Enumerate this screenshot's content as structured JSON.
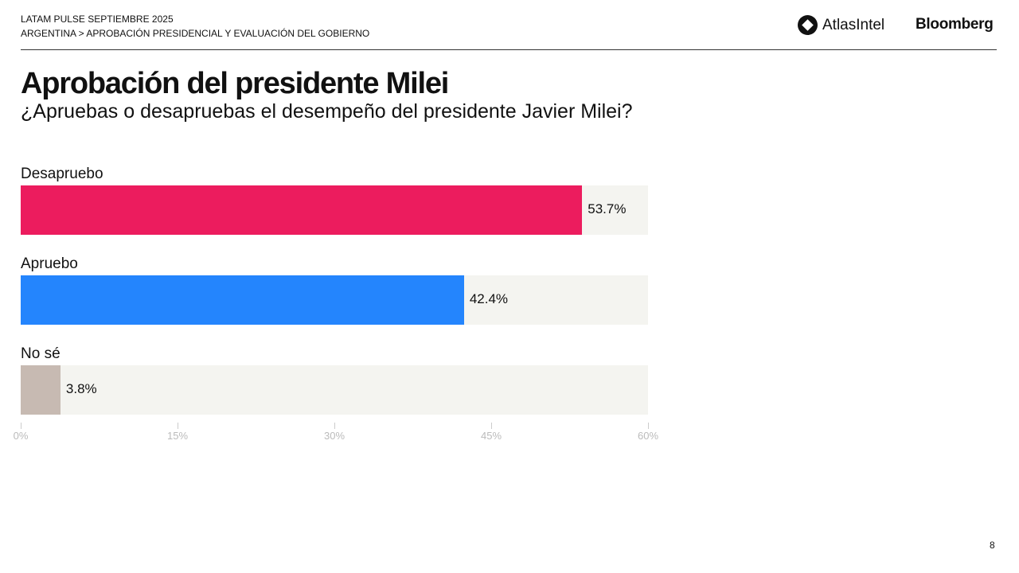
{
  "header": {
    "line1": "LATAM PULSE SEPTIEMBRE 2025",
    "line2": "ARGENTINA > APROBACIÓN PRESIDENCIAL Y EVALUACIÓN DEL GOBIERNO"
  },
  "logos": {
    "atlas": "AtlasIntel",
    "bloomberg": "Bloomberg"
  },
  "page_number": "8",
  "chart_data": {
    "type": "bar",
    "orientation": "horizontal",
    "title": "Aprobación del presidente Milei",
    "subtitle": "¿Apruebas o desapruebas el desempeño del presidente Javier Milei?",
    "categories": [
      "Desapruebo",
      "Apruebo",
      "No sé"
    ],
    "values": [
      53.7,
      42.4,
      3.8
    ],
    "value_labels": [
      "53.7%",
      "42.4%",
      "3.8%"
    ],
    "colors": [
      "#ec1c5e",
      "#2485fd",
      "#c7bab2"
    ],
    "xlim": [
      0,
      60
    ],
    "xticks": [
      "0%",
      "15%",
      "30%",
      "45%",
      "60%"
    ],
    "grid": false
  }
}
